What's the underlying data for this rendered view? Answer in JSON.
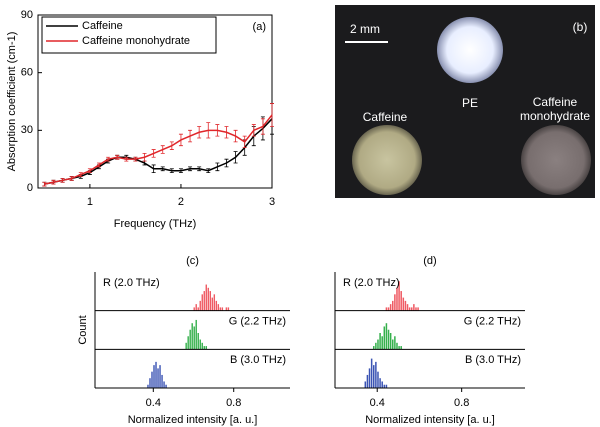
{
  "chart_data": [
    {
      "type": "line",
      "label": "(a)",
      "xlabel": "Frequency (THz)",
      "ylabel": "Absorption coefficient (cm-1)",
      "x": [
        0.5,
        0.6,
        0.7,
        0.8,
        0.9,
        1.0,
        1.1,
        1.2,
        1.3,
        1.4,
        1.5,
        1.6,
        1.7,
        1.8,
        1.9,
        2.0,
        2.1,
        2.2,
        2.3,
        2.4,
        2.5,
        2.6,
        2.7,
        2.8,
        2.9,
        3.0
      ],
      "xlim": [
        0.43,
        3
      ],
      "xticks": [
        1,
        2,
        3
      ],
      "ylim": [
        0,
        90
      ],
      "yticks": [
        0,
        30,
        60,
        90
      ],
      "series": [
        {
          "name": "Caffeine",
          "color": "#000000",
          "values": [
            2,
            3,
            4,
            5,
            6,
            8,
            11,
            14,
            16,
            16,
            15,
            13,
            10,
            10,
            9,
            9,
            10,
            10,
            9,
            11,
            13,
            16,
            21,
            27,
            31,
            36
          ],
          "errors": [
            1,
            1,
            1,
            1,
            1,
            1,
            1,
            1,
            1,
            1,
            1,
            1,
            2,
            1,
            1,
            1,
            1,
            1,
            1,
            2,
            2,
            3,
            4,
            5,
            6,
            8
          ]
        },
        {
          "name": "Caffeine monohydrate",
          "color": "#e0262a",
          "values": [
            2,
            3,
            4,
            5,
            7,
            9,
            12,
            15,
            16,
            15,
            15,
            16,
            18,
            20,
            22,
            25,
            27,
            29,
            30,
            30,
            29,
            27,
            24,
            30,
            32,
            38
          ],
          "errors": [
            1,
            1,
            1,
            1,
            1,
            1,
            1,
            1,
            1,
            1,
            1,
            2,
            2,
            2,
            2,
            3,
            3,
            3,
            4,
            3,
            3,
            3,
            3,
            3,
            4,
            6
          ]
        }
      ]
    },
    {
      "type": "histogram",
      "label": "(c)",
      "xlabel": "Normalized intensity [a. u.]",
      "ylabel": "Count",
      "xlim": [
        0.11,
        1.08
      ],
      "xticks": [
        0.4,
        0.8
      ],
      "ylim": [
        0,
        10
      ],
      "series": [
        {
          "name": "R (2.0 THz)",
          "color": "#ef5a63",
          "bins": [
            0.6,
            0.61,
            0.62,
            0.63,
            0.64,
            0.65,
            0.66,
            0.67,
            0.68,
            0.69,
            0.7,
            0.71,
            0.72,
            0.73,
            0.74,
            0.75,
            0.76,
            0.77,
            0.78
          ],
          "values": [
            1,
            2,
            1,
            3,
            5,
            6,
            8,
            7,
            6,
            4,
            5,
            3,
            2,
            1,
            1,
            0,
            1,
            1
          ]
        },
        {
          "name": "G (2.2 THz)",
          "color": "#35b04c",
          "bins": [
            0.56,
            0.57,
            0.58,
            0.59,
            0.6,
            0.61,
            0.62,
            0.63,
            0.64,
            0.65,
            0.66,
            0.67
          ],
          "values": [
            2,
            4,
            6,
            8,
            7,
            9,
            5,
            3,
            2,
            1,
            1
          ]
        },
        {
          "name": "B (3.0 THz)",
          "color": "#3b54b4",
          "bins": [
            0.37,
            0.38,
            0.39,
            0.4,
            0.41,
            0.42,
            0.43,
            0.44,
            0.45,
            0.46,
            0.47
          ],
          "values": [
            1,
            3,
            5,
            7,
            8,
            6,
            7,
            4,
            2,
            1
          ]
        }
      ]
    },
    {
      "type": "histogram",
      "label": "(d)",
      "xlabel": "Normalized intensity [a. u.]",
      "xlim": [
        0.2,
        1.1
      ],
      "xticks": [
        0.4,
        0.8
      ],
      "ylim": [
        0,
        10
      ],
      "series": [
        {
          "name": "R (2.0 THz)",
          "color": "#ef5a63",
          "bins": [
            0.44,
            0.45,
            0.46,
            0.47,
            0.48,
            0.49,
            0.5,
            0.51,
            0.52,
            0.53,
            0.54,
            0.55,
            0.56,
            0.57,
            0.58,
            0.59,
            0.6
          ],
          "values": [
            1,
            1,
            2,
            3,
            5,
            7,
            9,
            6,
            4,
            3,
            2,
            1,
            1,
            2,
            1,
            1
          ]
        },
        {
          "name": "G (2.2 THz)",
          "color": "#35b04c",
          "bins": [
            0.38,
            0.39,
            0.4,
            0.41,
            0.42,
            0.43,
            0.44,
            0.45,
            0.46,
            0.47,
            0.48,
            0.49,
            0.5,
            0.51,
            0.52
          ],
          "values": [
            1,
            2,
            3,
            5,
            4,
            7,
            8,
            6,
            5,
            3,
            4,
            2,
            1,
            1
          ]
        },
        {
          "name": "B (3.0 THz)",
          "color": "#3b54b4",
          "bins": [
            0.34,
            0.35,
            0.36,
            0.37,
            0.38,
            0.39,
            0.4,
            0.41,
            0.42,
            0.43,
            0.44,
            0.45
          ],
          "values": [
            2,
            4,
            6,
            9,
            7,
            8,
            5,
            3,
            2,
            1,
            1
          ]
        }
      ]
    }
  ],
  "image_panel": {
    "label": "(b)",
    "scale_bar": "2 mm",
    "samples": [
      "Caffeine",
      "PE",
      "Caffeine monohydrate"
    ]
  }
}
